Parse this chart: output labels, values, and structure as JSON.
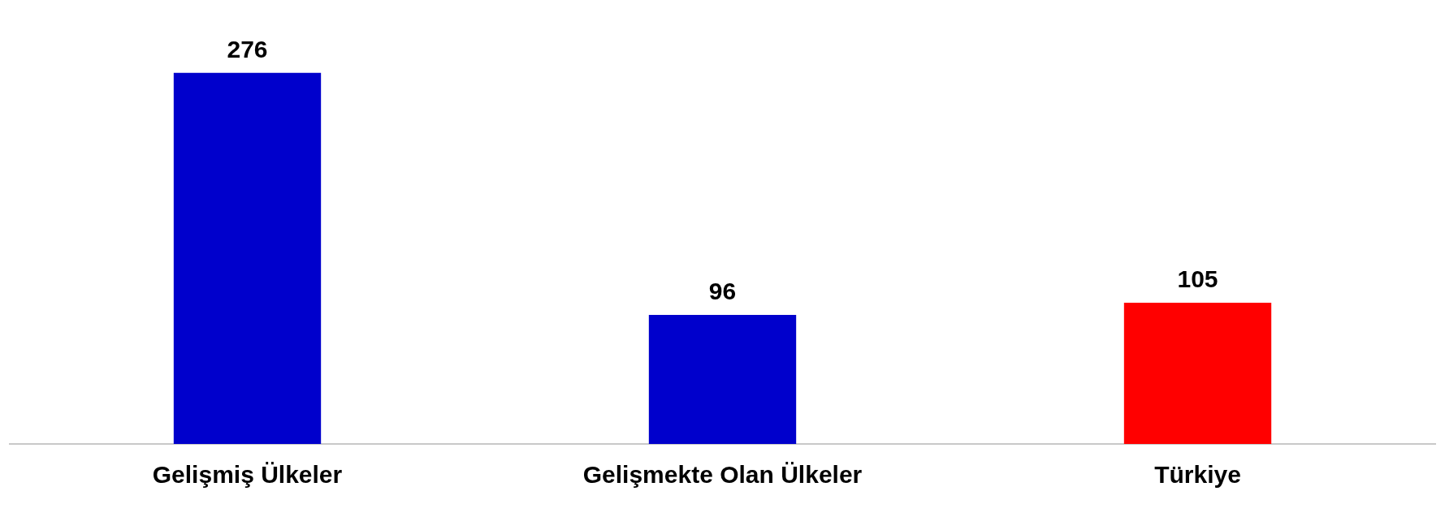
{
  "chart_data": {
    "type": "bar",
    "categories": [
      "Gelişmiş Ülkeler",
      "Gelişmekte Olan Ülkeler",
      "Türkiye"
    ],
    "values": [
      276,
      96,
      105
    ],
    "colors": [
      "#0000cc",
      "#0000cc",
      "#ff0000"
    ],
    "data_labels": true,
    "grid": false,
    "legend": false
  }
}
